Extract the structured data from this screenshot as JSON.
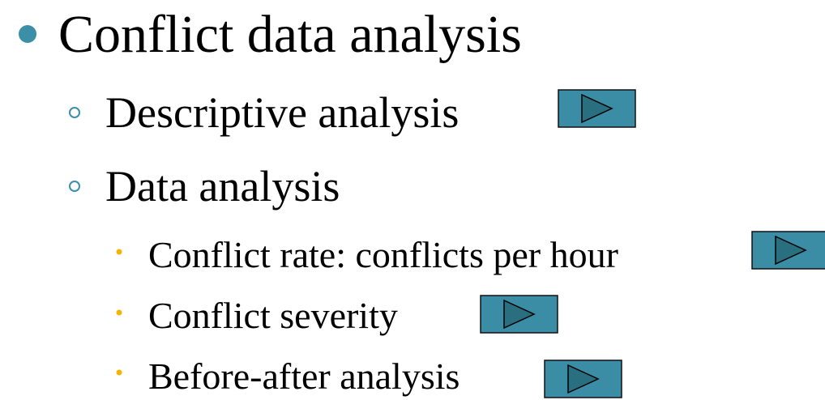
{
  "items": [
    {
      "text": "Conflict data analysis",
      "level": 1
    },
    {
      "text": "Descriptive analysis",
      "level": 2
    },
    {
      "text": "Data analysis",
      "level": 2
    },
    {
      "text": "Conflict rate: conflicts per hour",
      "level": 3
    },
    {
      "text": "Conflict severity",
      "level": 3
    },
    {
      "text": "Before-after analysis",
      "level": 3
    }
  ]
}
